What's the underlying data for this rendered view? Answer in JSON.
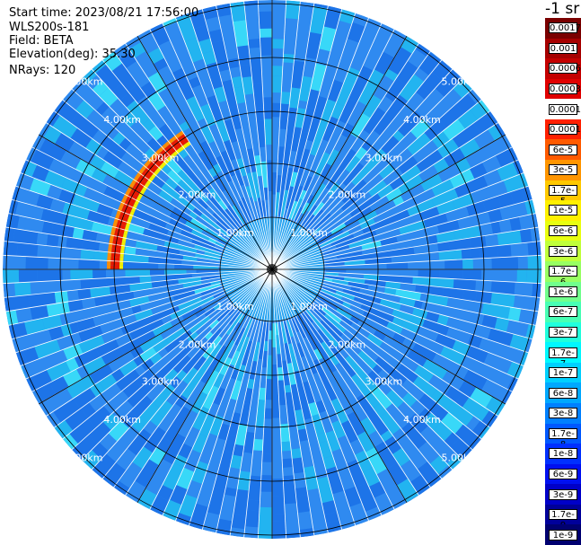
{
  "info": {
    "start_time": "Start time: 2023/08/21 17:56:00",
    "instrument": "WLS200s-181",
    "field": "Field: BETA",
    "elevation": "Elevation(deg): 35.30",
    "nrays": "NRays: 120"
  },
  "colorbar": {
    "units": "-1 sr",
    "levels": [
      {
        "label": "0.0017",
        "color": "#7a0000"
      },
      {
        "label": "0.001",
        "color": "#a60000"
      },
      {
        "label": "0.0006",
        "color": "#c40000"
      },
      {
        "label": "0.0003",
        "color": "#e00000"
      },
      {
        "label": "0.00017",
        "color": "#ffffff"
      },
      {
        "label": "0.0001",
        "color": "#ff2000"
      },
      {
        "label": "6e-5",
        "color": "#ff5a00"
      },
      {
        "label": "3e-5",
        "color": "#ff9500"
      },
      {
        "label": "1.7e-5",
        "color": "#ffc800"
      },
      {
        "label": "1e-5",
        "color": "#fff000"
      },
      {
        "label": "6e-6",
        "color": "#e8ff10"
      },
      {
        "label": "3e-6",
        "color": "#c0ff3a"
      },
      {
        "label": "1.7e-6",
        "color": "#98ff62"
      },
      {
        "label": "1e-6",
        "color": "#70ff8c"
      },
      {
        "label": "6e-7",
        "color": "#48ffb4"
      },
      {
        "label": "3e-7",
        "color": "#20ffdc"
      },
      {
        "label": "1.7e-7",
        "color": "#00f8ff"
      },
      {
        "label": "1e-7",
        "color": "#00d0ff"
      },
      {
        "label": "6e-8",
        "color": "#00a8ff"
      },
      {
        "label": "3e-8",
        "color": "#0080ff"
      },
      {
        "label": "1.7e-8",
        "color": "#0058ff"
      },
      {
        "label": "1e-8",
        "color": "#0030ff"
      },
      {
        "label": "6e-9",
        "color": "#0010f0"
      },
      {
        "label": "3e-9",
        "color": "#0000c8"
      },
      {
        "label": "1.7e-9",
        "color": "#00009a"
      },
      {
        "label": "1e-9",
        "color": "#000070"
      }
    ]
  },
  "ring_labels": [
    "1.00km",
    "2.00km",
    "3.00km",
    "4.00km",
    "5.00km"
  ],
  "colors": {
    "background_cell": "#2f8af0",
    "cell_alt": "#1d74e8",
    "cell_light": "#22b4f0",
    "cell_cyan": "#38d8f8",
    "grid_line": "#ffffff",
    "ring_line": "#000000",
    "echo_red": "#e81a00",
    "echo_orange": "#ff8c00",
    "echo_yellow": "#f4f000"
  }
}
